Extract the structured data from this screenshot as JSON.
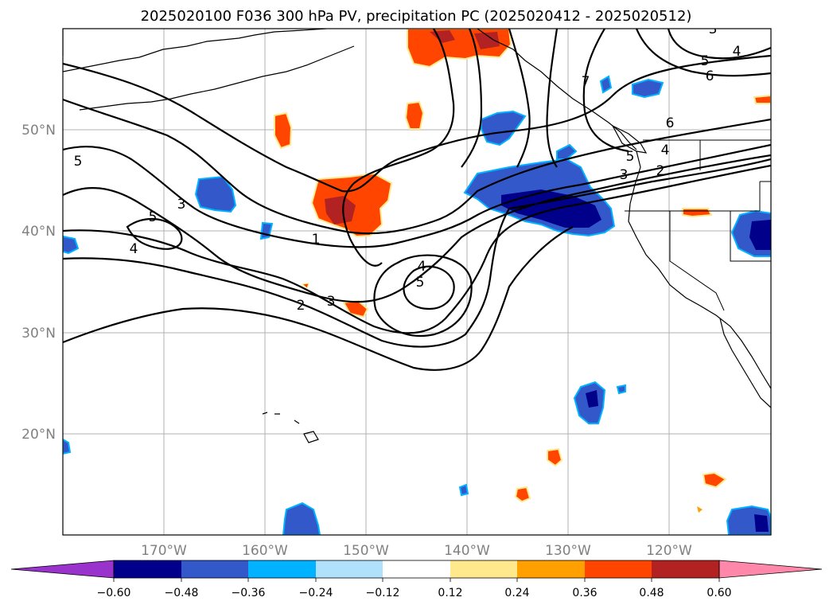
{
  "title": "2025020100 F036 300 hPa PV, precipitation PC (2025020412 - 2025020512)",
  "map": {
    "lon_range": [
      -180,
      -110
    ],
    "lat_range": [
      10,
      60
    ],
    "lon_ticks": [
      "170°W",
      "160°W",
      "150°W",
      "140°W",
      "130°W",
      "120°W"
    ],
    "lat_ticks": [
      "50°N",
      "40°N",
      "30°N",
      "20°N"
    ],
    "grid": true
  },
  "colorbar": {
    "levels": [
      "−0.60",
      "−0.48",
      "−0.36",
      "−0.24",
      "−0.12",
      "0.12",
      "0.24",
      "0.36",
      "0.48",
      "0.60"
    ],
    "colors": {
      "below": "#9933cc",
      "bins": [
        "#00008b",
        "#3358c9",
        "#00b2ff",
        "#b0e0fb",
        "#ffffff",
        "#ffe98c",
        "#ff9f00",
        "#ff4500",
        "#b22222"
      ],
      "above": "#ff88aa"
    }
  },
  "pv_contour_labels": [
    "5",
    "3",
    "5",
    "4",
    "1",
    "2",
    "3",
    "4",
    "5",
    "7",
    "5",
    "4",
    "6",
    "6",
    "5",
    "4",
    "3",
    "2",
    "3"
  ]
}
